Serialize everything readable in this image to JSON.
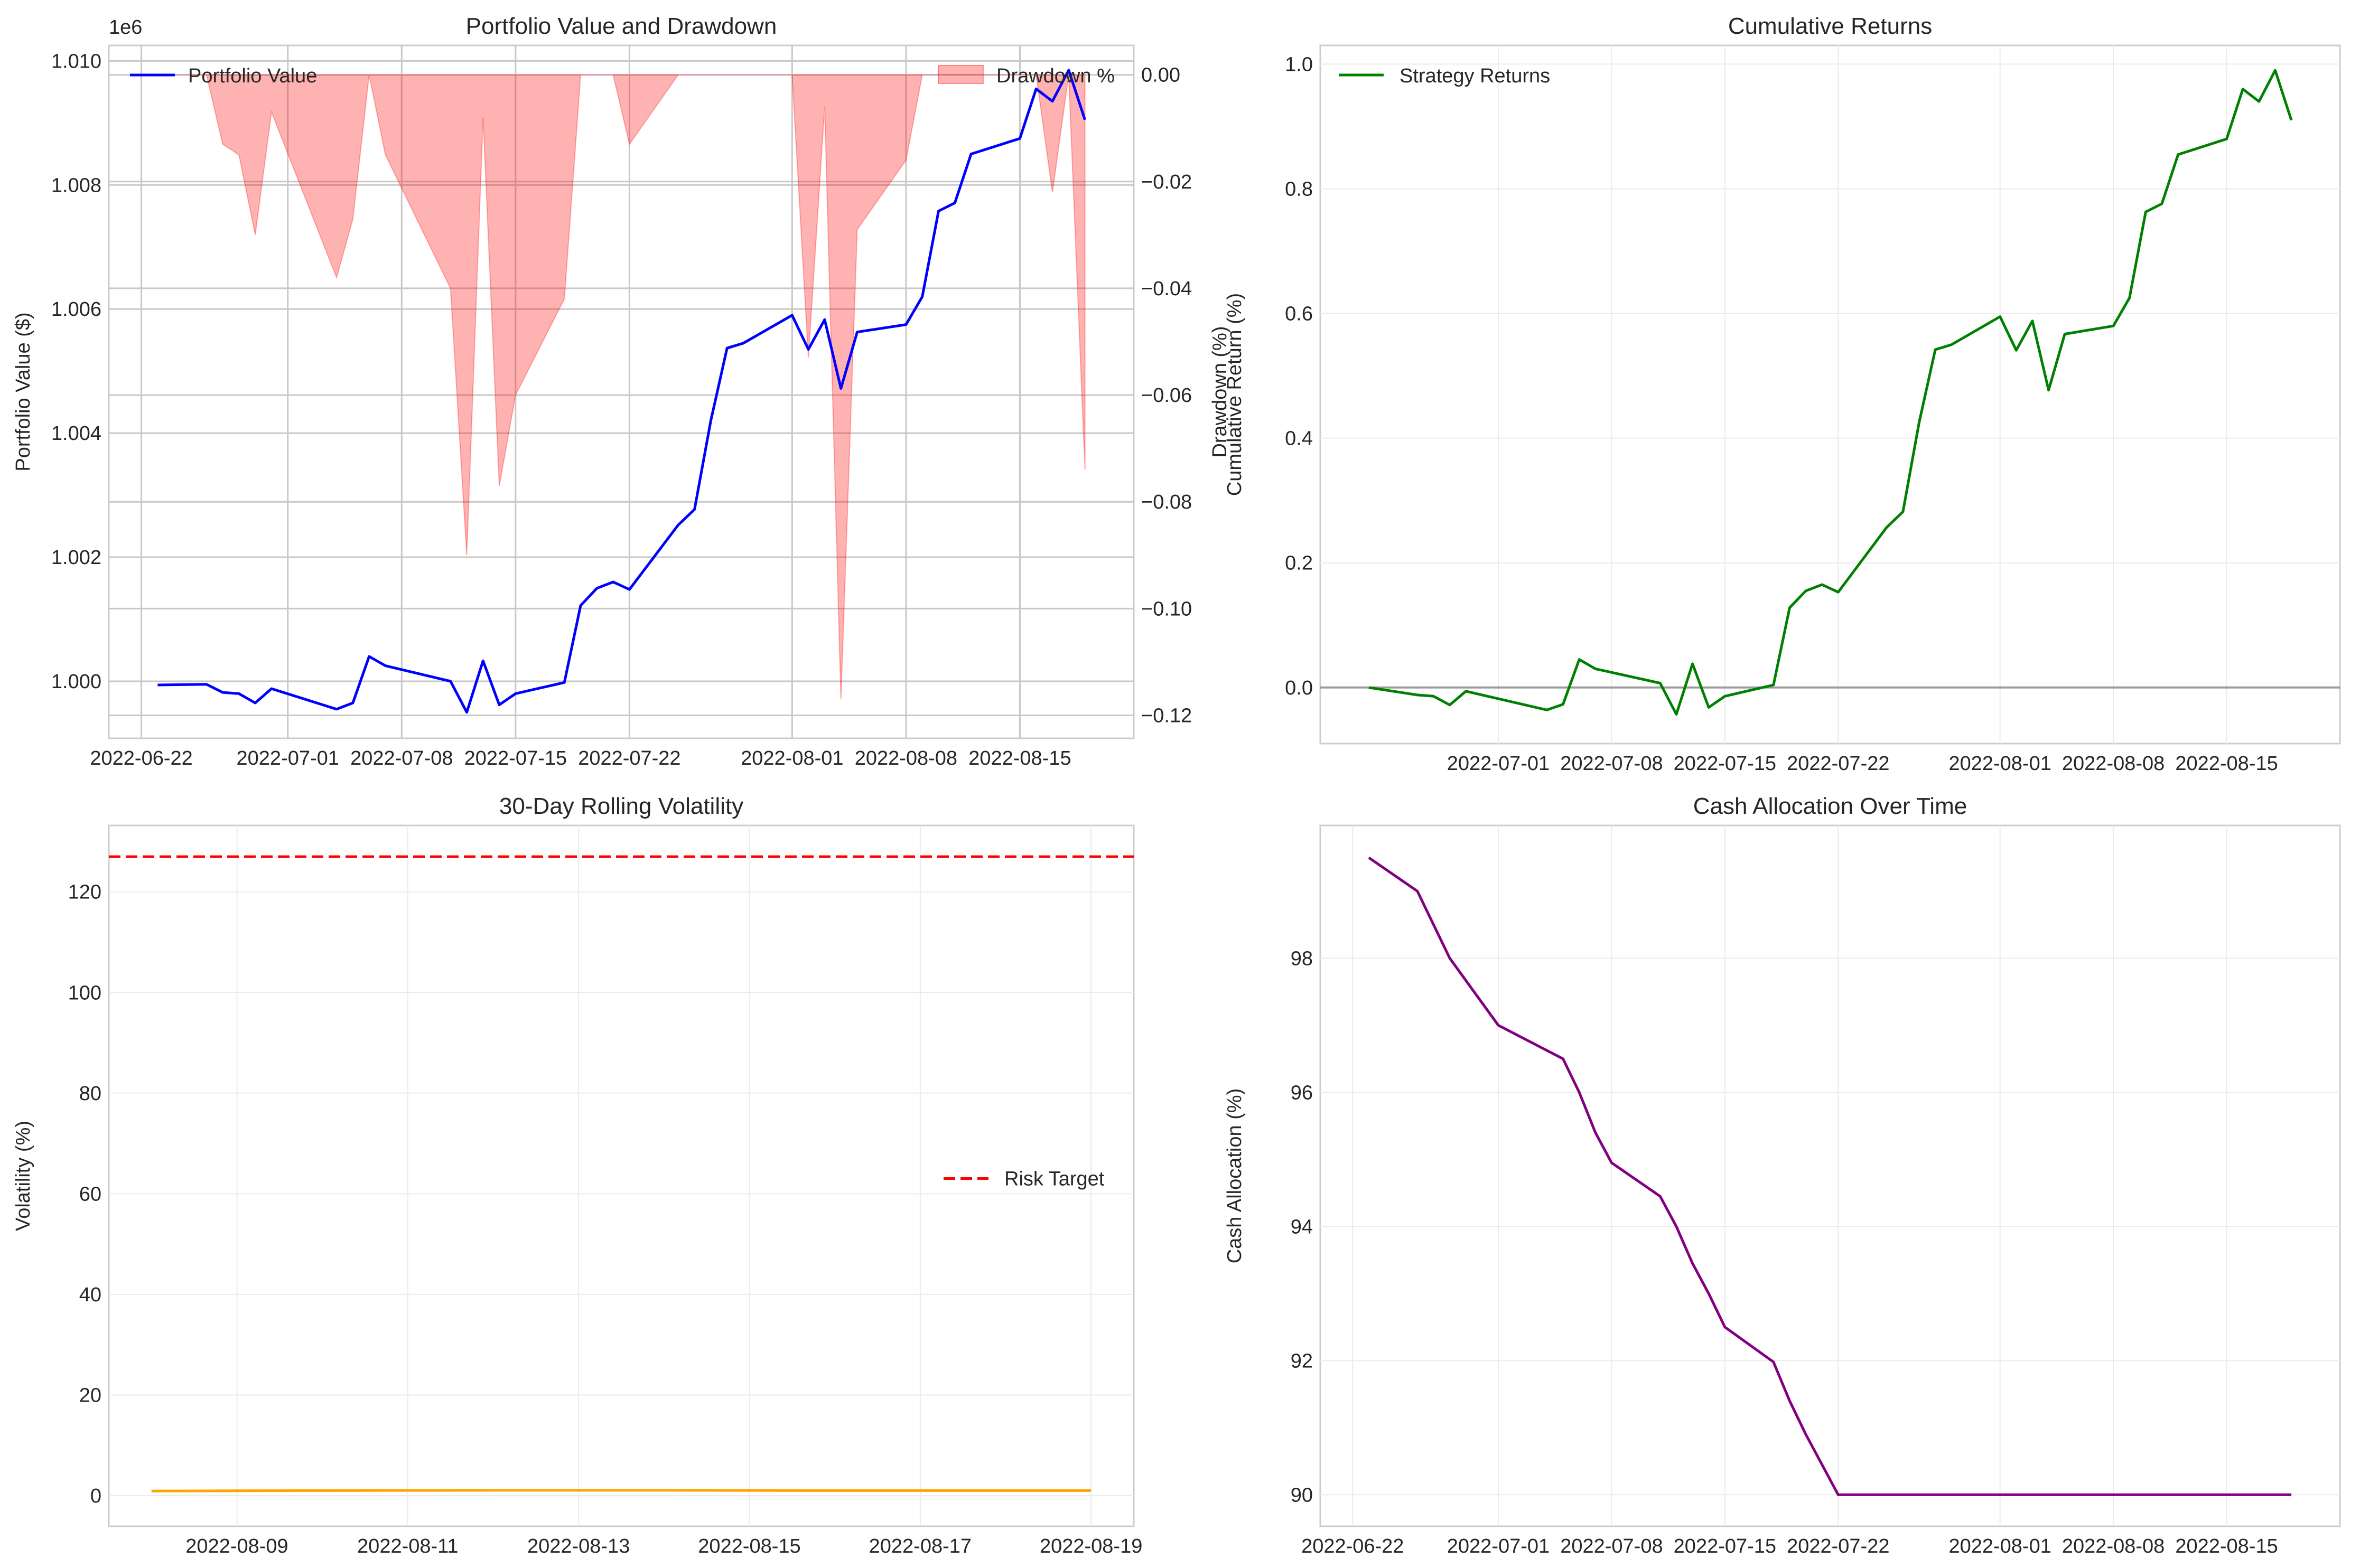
{
  "colors": {
    "portfolio": "#0000ff",
    "drawdown_fill": "#ff0000",
    "returns": "#008000",
    "volatility": "#ffa500",
    "risk_target": "#ff0000",
    "cash": "#800080",
    "grid": "#cccccc",
    "frame": "#cccccc",
    "zero_line": "#808080"
  },
  "chart_data": [
    {
      "id": "portfolio",
      "type": "line",
      "title": "Portfolio Value and Drawdown",
      "xlabel": "",
      "ylabel": "Portfolio Value ($)",
      "y2label": "Drawdown (%)",
      "offset_text": "1e6",
      "xlim": [
        "2022-06-20",
        "2022-08-22"
      ],
      "ylim": [
        0.99908,
        1.01025
      ],
      "y2lim": [
        -0.1243,
        0.0055
      ],
      "x_ticks": [
        "2022-06-22",
        "2022-07-01",
        "2022-07-08",
        "2022-07-15",
        "2022-07-22",
        "2022-08-01",
        "2022-08-08",
        "2022-08-15"
      ],
      "y_ticks": [
        "1.000",
        "1.002",
        "1.004",
        "1.006",
        "1.008",
        "1.010"
      ],
      "y2_ticks": [
        "0.00",
        "−0.02",
        "−0.04",
        "−0.06",
        "−0.08",
        "−0.10",
        "−0.12"
      ],
      "legend": [
        "Portfolio Value",
        "Drawdown %"
      ],
      "series": [
        {
          "name": "Portfolio Value",
          "points": [
            [
              "2022-06-23",
              0.99994
            ],
            [
              "2022-06-26",
              0.99995
            ],
            [
              "2022-06-27",
              0.99982
            ],
            [
              "2022-06-28",
              0.9998
            ],
            [
              "2022-06-29",
              0.99965
            ],
            [
              "2022-06-30",
              0.99988
            ],
            [
              "2022-07-04",
              0.99955
            ],
            [
              "2022-07-05",
              0.99965
            ],
            [
              "2022-07-06",
              1.0004
            ],
            [
              "2022-07-07",
              1.00025
            ],
            [
              "2022-07-11",
              1.0
            ],
            [
              "2022-07-12",
              0.9995
            ],
            [
              "2022-07-13",
              1.00033
            ],
            [
              "2022-07-14",
              0.99962
            ],
            [
              "2022-07-15",
              0.9998
            ],
            [
              "2022-07-18",
              0.99998
            ],
            [
              "2022-07-19",
              1.00122
            ],
            [
              "2022-07-20",
              1.0015
            ],
            [
              "2022-07-21",
              1.0016
            ],
            [
              "2022-07-22",
              1.00148
            ],
            [
              "2022-07-25",
              1.00252
            ],
            [
              "2022-07-26",
              1.00277
            ],
            [
              "2022-07-27",
              1.0042
            ],
            [
              "2022-07-28",
              1.00537
            ],
            [
              "2022-07-29",
              1.00545
            ],
            [
              "2022-08-01",
              1.0059
            ],
            [
              "2022-08-02",
              1.00535
            ],
            [
              "2022-08-03",
              1.00583
            ],
            [
              "2022-08-04",
              1.00472
            ],
            [
              "2022-08-05",
              1.00563
            ],
            [
              "2022-08-08",
              1.00575
            ],
            [
              "2022-08-09",
              1.0062
            ],
            [
              "2022-08-10",
              1.00758
            ],
            [
              "2022-08-11",
              1.00771
            ],
            [
              "2022-08-12",
              1.0085
            ],
            [
              "2022-08-15",
              1.00875
            ],
            [
              "2022-08-16",
              1.00955
            ],
            [
              "2022-08-17",
              1.00935
            ],
            [
              "2022-08-18",
              1.00985
            ],
            [
              "2022-08-19",
              1.00905
            ]
          ]
        },
        {
          "name": "Drawdown %",
          "points": [
            [
              "2022-06-23",
              0.0
            ],
            [
              "2022-06-26",
              0.0
            ],
            [
              "2022-06-27",
              -0.013
            ],
            [
              "2022-06-28",
              -0.015
            ],
            [
              "2022-06-29",
              -0.03
            ],
            [
              "2022-06-30",
              -0.007
            ],
            [
              "2022-07-04",
              -0.038
            ],
            [
              "2022-07-05",
              -0.027
            ],
            [
              "2022-07-06",
              0.0
            ],
            [
              "2022-07-07",
              -0.015
            ],
            [
              "2022-07-11",
              -0.04
            ],
            [
              "2022-07-12",
              -0.09
            ],
            [
              "2022-07-13",
              -0.008
            ],
            [
              "2022-07-14",
              -0.077
            ],
            [
              "2022-07-15",
              -0.06
            ],
            [
              "2022-07-18",
              -0.042
            ],
            [
              "2022-07-19",
              0.0
            ],
            [
              "2022-07-21",
              0.0
            ],
            [
              "2022-07-22",
              -0.013
            ],
            [
              "2022-07-25",
              0.0
            ],
            [
              "2022-08-01",
              0.0
            ],
            [
              "2022-08-02",
              -0.053
            ],
            [
              "2022-08-03",
              -0.006
            ],
            [
              "2022-08-04",
              -0.117
            ],
            [
              "2022-08-05",
              -0.029
            ],
            [
              "2022-08-08",
              -0.016
            ],
            [
              "2022-08-09",
              0.0
            ],
            [
              "2022-08-15",
              0.0
            ],
            [
              "2022-08-16",
              0.0
            ],
            [
              "2022-08-17",
              -0.022
            ],
            [
              "2022-08-18",
              0.0
            ],
            [
              "2022-08-19",
              -0.074
            ]
          ]
        }
      ]
    },
    {
      "id": "returns",
      "type": "line",
      "title": "Cumulative Returns",
      "xlabel": "",
      "ylabel": "Cumulative Return (%)",
      "xlim": [
        "2022-06-20",
        "2022-08-22"
      ],
      "ylim": [
        -0.09,
        1.03
      ],
      "x_ticks": [
        "2022-07-01",
        "2022-07-08",
        "2022-07-15",
        "2022-07-22",
        "2022-08-01",
        "2022-08-08",
        "2022-08-15"
      ],
      "y_ticks": [
        "0.0",
        "0.2",
        "0.4",
        "0.6",
        "0.8",
        "1.0"
      ],
      "legend": [
        "Strategy Returns"
      ],
      "series": [
        {
          "name": "Strategy Returns",
          "points": [
            [
              "2022-06-23",
              0.0
            ],
            [
              "2022-06-26",
              -0.012
            ],
            [
              "2022-06-27",
              -0.014
            ],
            [
              "2022-06-28",
              -0.028
            ],
            [
              "2022-06-29",
              -0.006
            ],
            [
              "2022-07-04",
              -0.036
            ],
            [
              "2022-07-05",
              -0.027
            ],
            [
              "2022-07-06",
              0.045
            ],
            [
              "2022-07-07",
              0.03
            ],
            [
              "2022-07-11",
              0.007
            ],
            [
              "2022-07-12",
              -0.043
            ],
            [
              "2022-07-13",
              0.038
            ],
            [
              "2022-07-14",
              -0.032
            ],
            [
              "2022-07-15",
              -0.014
            ],
            [
              "2022-07-18",
              0.004
            ],
            [
              "2022-07-19",
              0.128
            ],
            [
              "2022-07-20",
              0.155
            ],
            [
              "2022-07-21",
              0.165
            ],
            [
              "2022-07-22",
              0.153
            ],
            [
              "2022-07-25",
              0.257
            ],
            [
              "2022-07-26",
              0.282
            ],
            [
              "2022-07-27",
              0.425
            ],
            [
              "2022-07-28",
              0.542
            ],
            [
              "2022-07-29",
              0.55
            ],
            [
              "2022-08-01",
              0.595
            ],
            [
              "2022-08-02",
              0.541
            ],
            [
              "2022-08-03",
              0.588
            ],
            [
              "2022-08-04",
              0.477
            ],
            [
              "2022-08-05",
              0.567
            ],
            [
              "2022-08-08",
              0.58
            ],
            [
              "2022-08-09",
              0.625
            ],
            [
              "2022-08-10",
              0.763
            ],
            [
              "2022-08-11",
              0.776
            ],
            [
              "2022-08-12",
              0.855
            ],
            [
              "2022-08-15",
              0.88
            ],
            [
              "2022-08-16",
              0.96
            ],
            [
              "2022-08-17",
              0.94
            ],
            [
              "2022-08-18",
              0.99
            ],
            [
              "2022-08-19",
              0.91
            ]
          ]
        }
      ]
    },
    {
      "id": "volatility",
      "type": "line",
      "title": "30-Day Rolling Volatility",
      "xlabel": "",
      "ylabel": "Volatility (%)",
      "xlim": [
        "2022-08-07T12:00",
        "2022-08-19T12:00"
      ],
      "ylim": [
        -6.1,
        133.2
      ],
      "x_ticks": [
        "2022-08-09",
        "2022-08-11",
        "2022-08-13",
        "2022-08-15",
        "2022-08-17",
        "2022-08-19"
      ],
      "y_ticks": [
        "0",
        "20",
        "40",
        "60",
        "80",
        "100",
        "120"
      ],
      "legend": [
        "Risk Target"
      ],
      "risk_target": 127.0,
      "series": [
        {
          "name": "",
          "points": [
            [
              "2022-08-08",
              0.9
            ],
            [
              "2022-08-09",
              0.95
            ],
            [
              "2022-08-10",
              1.0
            ],
            [
              "2022-08-12",
              1.05
            ],
            [
              "2022-08-14",
              1.05
            ],
            [
              "2022-08-16",
              1.0
            ],
            [
              "2022-08-18",
              1.0
            ],
            [
              "2022-08-19",
              1.0
            ]
          ]
        },
        {
          "name": "Risk Target",
          "value": 127.0
        }
      ]
    },
    {
      "id": "cash",
      "type": "line",
      "title": "Cash Allocation Over Time",
      "xlabel": "",
      "ylabel": "Cash Allocation (%)",
      "xlim": [
        "2022-06-20",
        "2022-08-22"
      ],
      "ylim": [
        89.53,
        99.98
      ],
      "x_ticks": [
        "2022-06-22",
        "2022-07-01",
        "2022-07-08",
        "2022-07-15",
        "2022-07-22",
        "2022-08-01",
        "2022-08-08",
        "2022-08-15"
      ],
      "y_ticks": [
        "90",
        "92",
        "94",
        "96",
        "98"
      ],
      "series": [
        {
          "name": "",
          "points": [
            [
              "2022-06-23",
              99.5
            ],
            [
              "2022-06-26",
              99.0
            ],
            [
              "2022-06-28",
              98.0
            ],
            [
              "2022-07-01",
              97.0
            ],
            [
              "2022-07-05",
              96.5
            ],
            [
              "2022-07-06",
              96.0
            ],
            [
              "2022-07-07",
              95.4
            ],
            [
              "2022-07-08",
              94.95
            ],
            [
              "2022-07-11",
              94.45
            ],
            [
              "2022-07-12",
              94.0
            ],
            [
              "2022-07-13",
              93.45
            ],
            [
              "2022-07-14",
              93.0
            ],
            [
              "2022-07-15",
              92.5
            ],
            [
              "2022-07-18",
              91.98
            ],
            [
              "2022-07-19",
              91.4
            ],
            [
              "2022-07-20",
              90.9
            ],
            [
              "2022-07-22",
              90.0
            ],
            [
              "2022-07-25",
              90.0
            ],
            [
              "2022-08-01",
              90.0
            ],
            [
              "2022-08-08",
              90.0
            ],
            [
              "2022-08-15",
              90.0
            ],
            [
              "2022-08-19",
              90.0
            ]
          ]
        }
      ]
    }
  ]
}
